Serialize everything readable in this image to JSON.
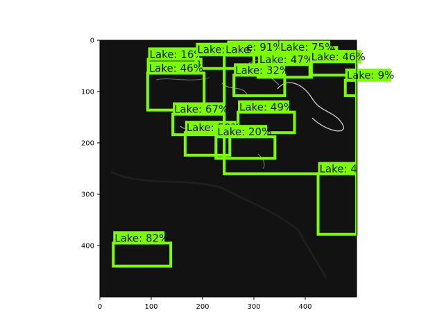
{
  "chart_data": {
    "type": "image-detections",
    "title": "",
    "xlabel": "",
    "ylabel": "",
    "xlim": [
      0,
      500
    ],
    "ylim": [
      500,
      0
    ],
    "x_ticks": [
      0,
      100,
      200,
      300,
      400
    ],
    "y_ticks": [
      0,
      100,
      200,
      300,
      400
    ],
    "grid": false,
    "box_color": "#7cfc00",
    "background_color": "#121212",
    "detections": [
      {
        "label": "Lake: 91%",
        "x1": 248,
        "y1": 14,
        "x2": 349,
        "y2": 29
      },
      {
        "label": "Lake: 75%",
        "x1": 349,
        "y1": 14,
        "x2": 461,
        "y2": 29
      },
      {
        "label": "Lake: 16%",
        "x1": 94,
        "y1": 37,
        "x2": 197,
        "y2": 60
      },
      {
        "label": "Lake: 22%",
        "x1": 187,
        "y1": 28,
        "x2": 300,
        "y2": 55
      },
      {
        "label": "Lake: 47%",
        "x1": 308,
        "y1": 47,
        "x2": 412,
        "y2": 72
      },
      {
        "label": "Lake: 46%",
        "x1": 409,
        "y1": 42,
        "x2": 500,
        "y2": 68
      },
      {
        "label": "Lake: 46%",
        "x1": 93,
        "y1": 64,
        "x2": 203,
        "y2": 136
      },
      {
        "label": "Lake: 32%",
        "x1": 261,
        "y1": 68,
        "x2": 360,
        "y2": 108
      },
      {
        "label": "Lake: 9%",
        "x1": 478,
        "y1": 78,
        "x2": 500,
        "y2": 108
      },
      {
        "label": "Lake: 67%",
        "x1": 142,
        "y1": 144,
        "x2": 242,
        "y2": 184
      },
      {
        "label": "Lake: 49%",
        "x1": 269,
        "y1": 140,
        "x2": 379,
        "y2": 180
      },
      {
        "label": "Lake: 59%",
        "x1": 166,
        "y1": 180,
        "x2": 253,
        "y2": 224
      },
      {
        "label": "Lake: 20%",
        "x1": 226,
        "y1": 188,
        "x2": 341,
        "y2": 230
      },
      {
        "label": "Lake",
        "x1": 242,
        "y1": 28,
        "x2": 500,
        "y2": 260
      },
      {
        "label": "Lake: 4",
        "x1": 425,
        "y1": 260,
        "x2": 500,
        "y2": 378
      },
      {
        "label": "Lake: 82%",
        "x1": 26,
        "y1": 395,
        "x2": 138,
        "y2": 440
      }
    ]
  }
}
